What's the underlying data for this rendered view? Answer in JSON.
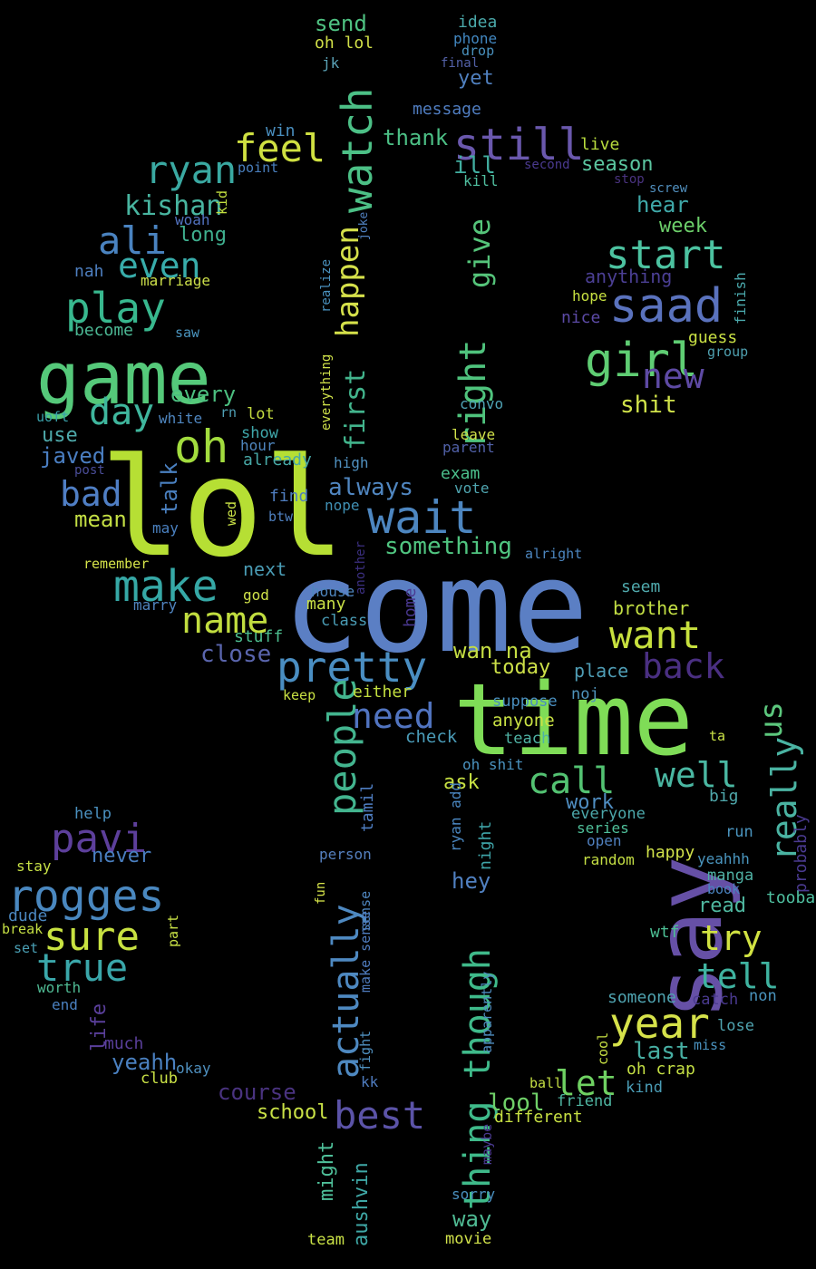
{
  "background": "#000000",
  "palette": {
    "lime": "#9ee034",
    "green": "#5fcf6a",
    "teal": "#2ab18e",
    "cyan": "#38a3a5",
    "blue": "#4f7ec4",
    "indigo": "#6a4da0",
    "purple": "#432f7e",
    "yellow": "#d6e44a"
  },
  "words": [
    {
      "text": "lol",
      "color": "#b6df34"
    },
    {
      "text": "come",
      "color": "#5b7fc4"
    },
    {
      "text": "time",
      "color": "#7fdc57"
    },
    {
      "text": "say",
      "color": "#6650a6"
    },
    {
      "text": "game",
      "color": "#55c97a"
    },
    {
      "text": "watch",
      "color": "#4cc086"
    },
    {
      "text": "oh",
      "color": "#a2dc3e"
    },
    {
      "text": "still",
      "color": "#6a58ad"
    },
    {
      "text": "saad",
      "color": "#5a72bd"
    },
    {
      "text": "girl",
      "color": "#5fcd73"
    },
    {
      "text": "wait",
      "color": "#4d86c0"
    },
    {
      "text": "pretty",
      "color": "#4a8ec2"
    },
    {
      "text": "make",
      "color": "#36a8a6"
    },
    {
      "text": "play",
      "color": "#38b88e"
    },
    {
      "text": "rogges",
      "color": "#4a88c0"
    },
    {
      "text": "year",
      "color": "#d6e24a"
    },
    {
      "text": "people",
      "color": "#43b58f"
    },
    {
      "text": "actually",
      "color": "#4e89c1"
    },
    {
      "text": "thing though",
      "color": "#3fba8a"
    },
    {
      "text": "right",
      "color": "#4fc37d"
    },
    {
      "text": "happen",
      "color": "#d5e04a"
    },
    {
      "text": "first",
      "color": "#42b48c"
    },
    {
      "text": "ryan",
      "color": "#3aa9a2"
    },
    {
      "text": "feel",
      "color": "#cfe041"
    },
    {
      "text": "ali",
      "color": "#4a83c0"
    },
    {
      "text": "even",
      "color": "#38acaa"
    },
    {
      "text": "start",
      "color": "#4cc2a0"
    },
    {
      "text": "new",
      "color": "#5e4aa4"
    },
    {
      "text": "want",
      "color": "#c7e03e"
    },
    {
      "text": "back",
      "color": "#4a2f82"
    },
    {
      "text": "really",
      "color": "#4ab3a2"
    },
    {
      "text": "us",
      "color": "#5cc77d"
    },
    {
      "text": "call",
      "color": "#53c272"
    },
    {
      "text": "well",
      "color": "#4ab7a2"
    },
    {
      "text": "try",
      "color": "#d1e242"
    },
    {
      "text": "tell",
      "color": "#3fb3a0"
    },
    {
      "text": "pavi",
      "color": "#5d3f9b"
    },
    {
      "text": "sure",
      "color": "#c8e241"
    },
    {
      "text": "true",
      "color": "#3aa7aa"
    },
    {
      "text": "bad",
      "color": "#4f7ec4"
    },
    {
      "text": "day",
      "color": "#3fb69d"
    },
    {
      "text": "name",
      "color": "#c1dd3f"
    },
    {
      "text": "need",
      "color": "#5174c0"
    },
    {
      "text": "best",
      "color": "#5b53a7"
    },
    {
      "text": "give",
      "color": "#55c47a"
    },
    {
      "text": "let",
      "color": "#6fd162"
    },
    {
      "text": "last",
      "color": "#47afa3"
    },
    {
      "text": "lool",
      "color": "#6fd068"
    },
    {
      "text": "send",
      "color": "#4fc282"
    },
    {
      "text": "oh lol",
      "color": "#d1e048"
    },
    {
      "text": "idea",
      "color": "#4aa9aa"
    },
    {
      "text": "phone",
      "color": "#4287c0"
    },
    {
      "text": "drop",
      "color": "#4a92bf"
    },
    {
      "text": "final",
      "color": "#5361a8"
    },
    {
      "text": "yet",
      "color": "#5080bf"
    },
    {
      "text": "jk",
      "color": "#5aa2b6"
    },
    {
      "text": "message",
      "color": "#4f7cbf"
    },
    {
      "text": "thank",
      "color": "#4cbf85"
    },
    {
      "text": "ill",
      "color": "#41aea0"
    },
    {
      "text": "kill",
      "color": "#50bfa0"
    },
    {
      "text": "second",
      "color": "#4a3a90"
    },
    {
      "text": "live",
      "color": "#b8dc3e"
    },
    {
      "text": "season",
      "color": "#5bc6a0"
    },
    {
      "text": "stop",
      "color": "#4a3380"
    },
    {
      "text": "screw",
      "color": "#5190bf"
    },
    {
      "text": "hear",
      "color": "#3fa9a9"
    },
    {
      "text": "week",
      "color": "#6ccf6a"
    },
    {
      "text": "anything",
      "color": "#4b3f94"
    },
    {
      "text": "finish",
      "color": "#4aa8ab"
    },
    {
      "text": "hope",
      "color": "#c7e041"
    },
    {
      "text": "nice",
      "color": "#5c4aa6"
    },
    {
      "text": "guess",
      "color": "#c9e044"
    },
    {
      "text": "group",
      "color": "#4fa0b0"
    },
    {
      "text": "shit",
      "color": "#d0e24a"
    },
    {
      "text": "win",
      "color": "#4a8fbf"
    },
    {
      "text": "point",
      "color": "#4a80bf"
    },
    {
      "text": "kishan",
      "color": "#48b5a0"
    },
    {
      "text": "kid",
      "color": "#c0dd3f"
    },
    {
      "text": "woah",
      "color": "#5272bf"
    },
    {
      "text": "long",
      "color": "#3fb08f"
    },
    {
      "text": "nah",
      "color": "#4e7fc0"
    },
    {
      "text": "marriage",
      "color": "#cde04a"
    },
    {
      "text": "realize",
      "color": "#4a92bf"
    },
    {
      "text": "joke",
      "color": "#5080bf"
    },
    {
      "text": "become",
      "color": "#4cb894"
    },
    {
      "text": "saw",
      "color": "#4a94be"
    },
    {
      "text": "every",
      "color": "#4cbf80"
    },
    {
      "text": "everything",
      "color": "#d0e24a"
    },
    {
      "text": "convo",
      "color": "#4fa3b5"
    },
    {
      "text": "leave",
      "color": "#d1e24a"
    },
    {
      "text": "parent",
      "color": "#5161a8"
    },
    {
      "text": "uoft",
      "color": "#3aa1aa"
    },
    {
      "text": "white",
      "color": "#4f86bf"
    },
    {
      "text": "rn",
      "color": "#4f9fb5"
    },
    {
      "text": "lot",
      "color": "#c5dd40"
    },
    {
      "text": "show",
      "color": "#3fa7aa"
    },
    {
      "text": "hour",
      "color": "#4f86bf"
    },
    {
      "text": "use",
      "color": "#4ea9aa"
    },
    {
      "text": "javed",
      "color": "#4a7ec1"
    },
    {
      "text": "already",
      "color": "#47a8a6"
    },
    {
      "text": "high",
      "color": "#5090bf"
    },
    {
      "text": "post",
      "color": "#4a4d98"
    },
    {
      "text": "exam",
      "color": "#4bbf8b"
    },
    {
      "text": "vote",
      "color": "#4fa5b0"
    },
    {
      "text": "talk",
      "color": "#4a80c0"
    },
    {
      "text": "always",
      "color": "#5086c0"
    },
    {
      "text": "find",
      "color": "#4f7dbf"
    },
    {
      "text": "nope",
      "color": "#4090b4"
    },
    {
      "text": "mean",
      "color": "#c4df44"
    },
    {
      "text": "wed",
      "color": "#c9e146"
    },
    {
      "text": "btw",
      "color": "#4f80c0"
    },
    {
      "text": "may",
      "color": "#4a80bf"
    },
    {
      "text": "something",
      "color": "#50c580"
    },
    {
      "text": "alright",
      "color": "#4c86bf"
    },
    {
      "text": "remember",
      "color": "#d6e44a"
    },
    {
      "text": "another",
      "color": "#3b2f80"
    },
    {
      "text": "next",
      "color": "#4a9cb5"
    },
    {
      "text": "god",
      "color": "#d0e24a"
    },
    {
      "text": "marry",
      "color": "#5084bf"
    },
    {
      "text": "house",
      "color": "#4f86bf"
    },
    {
      "text": "home",
      "color": "#4a3890"
    },
    {
      "text": "many",
      "color": "#c9e146"
    },
    {
      "text": "class",
      "color": "#4a9cb5"
    },
    {
      "text": "seem",
      "color": "#4fa8ab"
    },
    {
      "text": "brother",
      "color": "#c3df44"
    },
    {
      "text": "stuff",
      "color": "#4cbc8e"
    },
    {
      "text": "close",
      "color": "#5a65ad"
    },
    {
      "text": "wan na",
      "color": "#c5de43"
    },
    {
      "text": "today",
      "color": "#cde048"
    },
    {
      "text": "place",
      "color": "#4f9db5"
    },
    {
      "text": "keep",
      "color": "#c7e043"
    },
    {
      "text": "either",
      "color": "#c2de3f"
    },
    {
      "text": "noj",
      "color": "#4f94bc"
    },
    {
      "text": "suppose",
      "color": "#4a8fbf"
    },
    {
      "text": "anyone",
      "color": "#c9e244"
    },
    {
      "text": "teach",
      "color": "#4fb2a4"
    },
    {
      "text": "check",
      "color": "#4a9bb7"
    },
    {
      "text": "ta",
      "color": "#c9e146"
    },
    {
      "text": "oh shit",
      "color": "#4a92bf"
    },
    {
      "text": "ask",
      "color": "#c7e043"
    },
    {
      "text": "tamil",
      "color": "#4f7ec2"
    },
    {
      "text": "ryan add",
      "color": "#4a86bf"
    },
    {
      "text": "night",
      "color": "#3fa5a9"
    },
    {
      "text": "work",
      "color": "#4f8dc0"
    },
    {
      "text": "everyone",
      "color": "#4ca8ab"
    },
    {
      "text": "series",
      "color": "#4fc09a"
    },
    {
      "text": "open",
      "color": "#5080bf"
    },
    {
      "text": "big",
      "color": "#4fa8ab"
    },
    {
      "text": "run",
      "color": "#4a94be"
    },
    {
      "text": "probably",
      "color": "#4a3a90"
    },
    {
      "text": "random",
      "color": "#c5df44"
    },
    {
      "text": "happy",
      "color": "#d1e24a"
    },
    {
      "text": "yeahhh",
      "color": "#4a95be"
    },
    {
      "text": "manga",
      "color": "#4fb1a4"
    },
    {
      "text": "book",
      "color": "#4a83bf"
    },
    {
      "text": "read",
      "color": "#4fb8a0"
    },
    {
      "text": "tooba",
      "color": "#4fc0a0"
    },
    {
      "text": "help",
      "color": "#4a90bf"
    },
    {
      "text": "never",
      "color": "#4a7fc0"
    },
    {
      "text": "person",
      "color": "#5580bf"
    },
    {
      "text": "hey",
      "color": "#5080c0"
    },
    {
      "text": "fun",
      "color": "#d6e44a"
    },
    {
      "text": "stay",
      "color": "#c7e146"
    },
    {
      "text": "dude",
      "color": "#4a86bf"
    },
    {
      "text": "break",
      "color": "#c5df44"
    },
    {
      "text": "set",
      "color": "#4aa0b5"
    },
    {
      "text": "part",
      "color": "#c8e146"
    },
    {
      "text": "sense",
      "color": "#4f86bf"
    },
    {
      "text": "make sense",
      "color": "#4f7cbf"
    },
    {
      "text": "apparently",
      "color": "#4f8dc0"
    },
    {
      "text": "wtf",
      "color": "#4cbf94"
    },
    {
      "text": "worth",
      "color": "#4fba93"
    },
    {
      "text": "end",
      "color": "#4a80bf"
    },
    {
      "text": "life",
      "color": "#5a3f9b"
    },
    {
      "text": "someone",
      "color": "#4fa3b0"
    },
    {
      "text": "catch",
      "color": "#4a3a90"
    },
    {
      "text": "non",
      "color": "#4a94be"
    },
    {
      "text": "lose",
      "color": "#4fa4b0"
    },
    {
      "text": "miss",
      "color": "#4a92bf"
    },
    {
      "text": "much",
      "color": "#5a3f9b"
    },
    {
      "text": "fight",
      "color": "#4f90bf"
    },
    {
      "text": "cool",
      "color": "#c7e043"
    },
    {
      "text": "yeahh",
      "color": "#4a80c0"
    },
    {
      "text": "okay",
      "color": "#4f90bf"
    },
    {
      "text": "club",
      "color": "#c9e146"
    },
    {
      "text": "kk",
      "color": "#4f7cbf"
    },
    {
      "text": "oh crap",
      "color": "#c4df44"
    },
    {
      "text": "kind",
      "color": "#4a9cb5"
    },
    {
      "text": "course",
      "color": "#4a3380"
    },
    {
      "text": "ball",
      "color": "#c5df44"
    },
    {
      "text": "friend",
      "color": "#4fb6a2"
    },
    {
      "text": "school",
      "color": "#c9e146"
    },
    {
      "text": "different",
      "color": "#c7e043"
    },
    {
      "text": "maybe",
      "color": "#4a3a90"
    },
    {
      "text": "might",
      "color": "#4fc09a"
    },
    {
      "text": "aushvin",
      "color": "#3fa8a6"
    },
    {
      "text": "sorry",
      "color": "#4a90bf"
    },
    {
      "text": "way",
      "color": "#4fba93"
    },
    {
      "text": "team",
      "color": "#c9e146"
    },
    {
      "text": "movie",
      "color": "#d1e24a"
    }
  ]
}
